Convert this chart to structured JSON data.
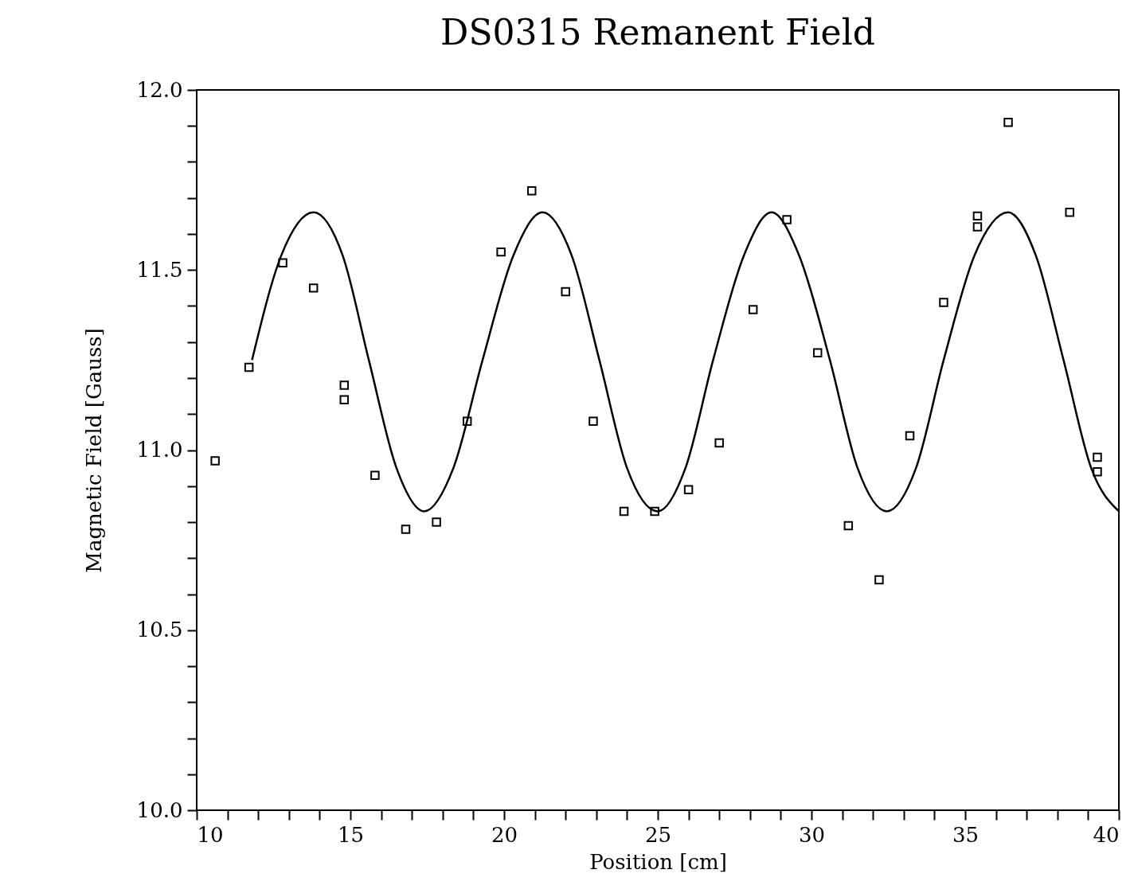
{
  "chart_data": {
    "type": "scatter",
    "title": "DS0315 Remanent Field",
    "xlabel": "Position [cm]",
    "ylabel": "Magnetic Field [Gauss]",
    "marker": "square",
    "line_style": "solid",
    "xlim": [
      10,
      40
    ],
    "ylim": [
      10,
      12
    ],
    "xticks": [
      10,
      {
        "value": 11,
        "label": null
      },
      {
        "value": 12,
        "label": null
      },
      {
        "value": 13,
        "label": null
      },
      {
        "value": 14,
        "label": null
      },
      15,
      {
        "value": 16,
        "label": null
      },
      {
        "value": 17,
        "label": null
      },
      {
        "value": 18,
        "label": null
      },
      {
        "value": 19,
        "label": null
      },
      20,
      {
        "value": 21,
        "label": null
      },
      {
        "value": 22,
        "label": null
      },
      {
        "value": 23,
        "label": null
      },
      {
        "value": 24,
        "label": null
      },
      25,
      {
        "value": 26,
        "label": null
      },
      {
        "value": 27,
        "label": null
      },
      {
        "value": 28,
        "label": null
      },
      {
        "value": 29,
        "label": null
      },
      30,
      {
        "value": 31,
        "label": null
      },
      {
        "value": 32,
        "label": null
      },
      {
        "value": 33,
        "label": null
      },
      {
        "value": 34,
        "label": null
      },
      35,
      {
        "value": 36,
        "label": null
      },
      {
        "value": 37,
        "label": null
      },
      {
        "value": 38,
        "label": null
      },
      {
        "value": 39,
        "label": null
      },
      40
    ],
    "yticks": [
      {
        "value": 10,
        "label": "10.0"
      },
      {
        "value": 10.1,
        "label": null
      },
      {
        "value": 10.2,
        "label": null
      },
      {
        "value": 10.3,
        "label": null
      },
      {
        "value": 10.4,
        "label": null
      },
      10.5,
      {
        "value": 10.6,
        "label": null
      },
      {
        "value": 10.7,
        "label": null
      },
      {
        "value": 10.8,
        "label": null
      },
      {
        "value": 10.9,
        "label": null
      },
      {
        "value": 11,
        "label": "11.0"
      },
      {
        "value": 11.1,
        "label": null
      },
      {
        "value": 11.2,
        "label": null
      },
      {
        "value": 11.3,
        "label": null
      },
      {
        "value": 11.4,
        "label": null
      },
      11.5,
      {
        "value": 11.6,
        "label": null
      },
      {
        "value": 11.7,
        "label": null
      },
      {
        "value": 11.8,
        "label": null
      },
      {
        "value": 11.9,
        "label": null
      },
      {
        "value": 12,
        "label": "12.0"
      }
    ],
    "series": [
      {
        "type": "scatter",
        "color": "#000000",
        "x": [
          10.6,
          11.7,
          12.8,
          13.8,
          14.8,
          14.8,
          15.8,
          16.8,
          17.8,
          18.8,
          19.9,
          20.9,
          22.0,
          22.9,
          23.9,
          24.9,
          26.0,
          27.0,
          28.1,
          29.2,
          30.2,
          31.2,
          32.2,
          33.2,
          34.3,
          35.4,
          35.4,
          36.4,
          38.4,
          39.3,
          39.3
        ],
        "values": [
          10.97,
          11.23,
          11.52,
          11.45,
          11.18,
          11.14,
          10.93,
          10.78,
          10.8,
          11.08,
          11.55,
          11.72,
          11.44,
          11.08,
          10.83,
          10.83,
          10.89,
          11.02,
          11.39,
          11.64,
          11.27,
          10.79,
          10.64,
          11.04,
          11.41,
          11.65,
          11.62,
          11.91,
          11.66,
          10.98,
          10.94
        ]
      },
      {
        "type": "line",
        "color": "#000000",
        "marker": "none",
        "x": [
          11.8,
          12.75,
          13.8,
          14.75,
          15.6,
          16.5,
          17.4,
          18.35,
          19.3,
          20.3,
          21.25,
          22.2,
          23.1,
          24.0,
          25.0,
          25.9,
          26.8,
          27.8,
          28.7,
          29.6,
          30.6,
          31.5,
          32.45,
          33.4,
          34.3,
          35.3,
          36.4,
          37.3,
          38.2,
          39.1,
          40
        ],
        "values": [
          11.25,
          11.54,
          11.66,
          11.54,
          11.25,
          10.95,
          10.83,
          10.95,
          11.25,
          11.54,
          11.66,
          11.54,
          11.25,
          10.95,
          10.83,
          10.95,
          11.25,
          11.54,
          11.66,
          11.54,
          11.25,
          10.95,
          10.83,
          10.95,
          11.25,
          11.54,
          11.66,
          11.54,
          11.25,
          10.95,
          10.83
        ]
      }
    ]
  }
}
